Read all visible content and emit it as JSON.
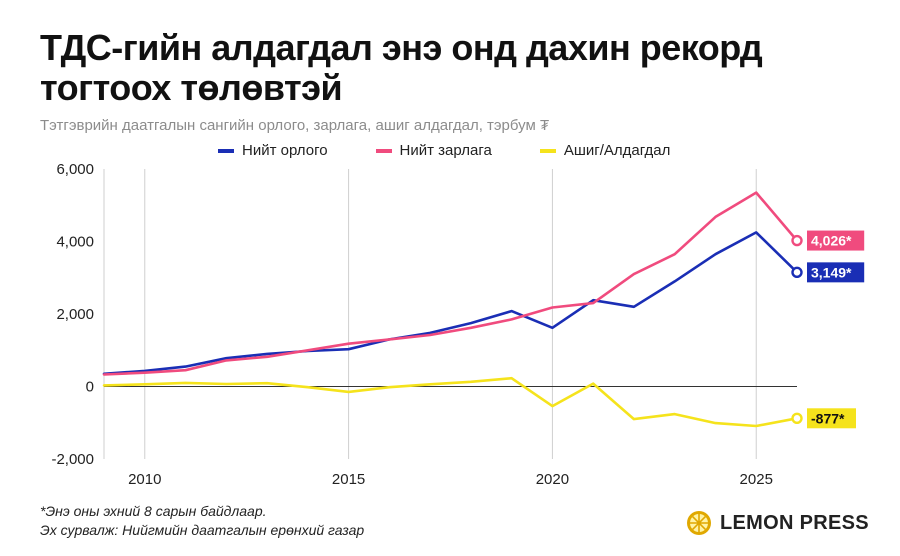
{
  "title": "ТДС-гийн алдагдал энэ онд дахин рекорд тогтоох төлөвтэй",
  "subtitle": "Тэтгэврийн даатгалын сангийн орлого, зарлага, ашиг алдагдал, тэрбум ₮",
  "footnote": {
    "line1": "*Энэ оны эхний 8 сарын байдлаар.",
    "line2": "Эх сурвалж: Нийгмийн даатгалын ерөнхий газар"
  },
  "brand": {
    "name": "LEMON PRESS",
    "icon": "lemon-icon"
  },
  "colors": {
    "income": "#1a2eb5",
    "expense": "#f04b7e",
    "balance": "#f5e31c"
  },
  "chart_data": {
    "type": "line",
    "xlim": [
      2009,
      2026
    ],
    "ylim": [
      -2000,
      6000
    ],
    "x_ticks": [
      2010,
      2015,
      2020,
      2025
    ],
    "x_tick_labels": [
      "2010",
      "2015",
      "2020",
      "2025"
    ],
    "y_ticks": [
      -2000,
      0,
      2000,
      4000,
      6000
    ],
    "y_tick_labels": [
      "-2,000",
      "0",
      "2,000",
      "4,000",
      "6,000"
    ],
    "grid": "vertical",
    "legend_position": "top",
    "x": [
      2009,
      2010,
      2011,
      2012,
      2013,
      2014,
      2015,
      2016,
      2017,
      2018,
      2019,
      2020,
      2021,
      2022,
      2023,
      2024,
      2025,
      2026
    ],
    "series": [
      {
        "name": "Нийт орлого",
        "key": "income",
        "values": [
          350,
          430,
          550,
          780,
          900,
          980,
          1030,
          1300,
          1480,
          1750,
          2080,
          1620,
          2380,
          2200,
          2900,
          3650,
          4250,
          3149
        ],
        "end_label": "3,149*"
      },
      {
        "name": "Нийт зарлага",
        "key": "expense",
        "values": [
          330,
          380,
          450,
          720,
          820,
          1000,
          1180,
          1300,
          1420,
          1620,
          1850,
          2180,
          2300,
          3100,
          3650,
          4680,
          5350,
          4026
        ],
        "end_label": "4,026*"
      },
      {
        "name": "Ашиг/Алдагдал",
        "key": "balance",
        "values": [
          30,
          60,
          100,
          70,
          90,
          -20,
          -150,
          -20,
          60,
          130,
          230,
          -540,
          80,
          -900,
          -760,
          -1010,
          -1090,
          -877
        ],
        "end_label": "-877*"
      }
    ]
  }
}
